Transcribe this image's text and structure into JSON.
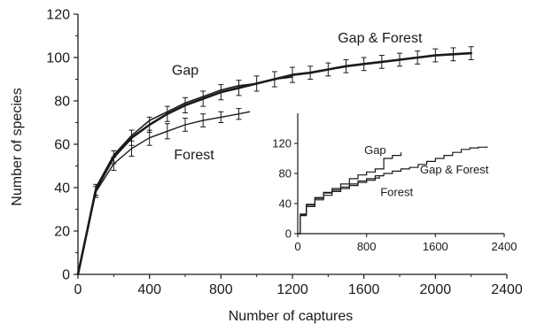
{
  "chart_data": [
    {
      "panel": "main",
      "type": "line",
      "title": "",
      "xlabel": "Number of captures",
      "ylabel": "Number of species",
      "xlim": [
        0,
        2400
      ],
      "ylim": [
        0,
        120
      ],
      "xticks": [
        "0",
        "400",
        "800",
        "1200",
        "1600",
        "2000",
        "2400"
      ],
      "yticks": [
        "0",
        "20",
        "40",
        "60",
        "80",
        "100",
        "120"
      ],
      "grid": false,
      "legend": "none (series labelled directly on curves)",
      "series": [
        {
          "name": "Gap & Forest",
          "color": "#1a1a1a",
          "x": [
            0,
            100,
            200,
            300,
            400,
            500,
            600,
            700,
            800,
            900,
            1000,
            1100,
            1200,
            1300,
            1400,
            1500,
            1600,
            1700,
            1800,
            1900,
            2000,
            2100,
            2200
          ],
          "y": [
            0,
            39,
            54,
            63,
            69,
            74,
            78,
            81,
            84,
            86,
            88,
            90,
            92,
            93,
            94.5,
            96,
            97,
            98,
            99,
            100,
            101,
            101.5,
            102
          ],
          "err": [
            2.5,
            2.5,
            3,
            3.5,
            3.5,
            3.5,
            3.5,
            3.5,
            3.5,
            3.5,
            3.5,
            3.5,
            3.5,
            3,
            3,
            3,
            3,
            3,
            3,
            3,
            3,
            3,
            3
          ]
        },
        {
          "name": "Gap",
          "color": "#1a1a1a",
          "x": [
            0,
            100,
            200,
            300,
            400,
            500,
            600,
            700,
            800,
            900,
            1000,
            1100,
            1200
          ],
          "y": [
            0,
            40,
            55,
            64,
            71,
            75,
            79,
            82,
            85,
            87,
            88,
            90,
            91
          ],
          "err": []
        },
        {
          "name": "Forest",
          "color": "#1a1a1a",
          "x": [
            0,
            100,
            200,
            300,
            400,
            500,
            600,
            700,
            800,
            900,
            960
          ],
          "y": [
            0,
            38,
            51,
            58,
            63,
            66,
            69,
            71,
            72.5,
            74,
            75
          ],
          "err": [
            2.5,
            2.5,
            3,
            3.5,
            3.5,
            3.5,
            3,
            3,
            2.5,
            2.5,
            0
          ]
        }
      ],
      "annotations": [
        "Gap & Forest",
        "Gap",
        "Forest"
      ]
    },
    {
      "panel": "inset",
      "type": "line",
      "title": "",
      "xlim": [
        0,
        2400
      ],
      "ylim": [
        0,
        160
      ],
      "xticks": [
        "0",
        "800",
        "1600",
        "2400"
      ],
      "yticks": [
        "0",
        "40",
        "80",
        "120"
      ],
      "grid": false,
      "series": [
        {
          "name": "Gap & Forest",
          "x": [
            0,
            30,
            100,
            200,
            300,
            400,
            500,
            600,
            700,
            800,
            900,
            1000,
            1100,
            1200,
            1300,
            1400,
            1500,
            1600,
            1700,
            1800,
            1900,
            2000,
            2100,
            2200
          ],
          "y": [
            0,
            25,
            38,
            47,
            54,
            58,
            62,
            66,
            70,
            73,
            77,
            80,
            83,
            86,
            88,
            92,
            96,
            100,
            104,
            108,
            112,
            114,
            115,
            116
          ]
        },
        {
          "name": "Gap",
          "x": [
            0,
            30,
            100,
            200,
            300,
            400,
            500,
            600,
            700,
            800,
            900,
            1000,
            1100,
            1200
          ],
          "y": [
            0,
            26,
            39,
            48,
            55,
            60,
            66,
            73,
            78,
            82,
            86,
            100,
            104,
            108
          ]
        },
        {
          "name": "Forest",
          "x": [
            0,
            30,
            100,
            200,
            300,
            400,
            500,
            600,
            700,
            800,
            900,
            950
          ],
          "y": [
            0,
            24,
            36,
            45,
            51,
            56,
            60,
            64,
            68,
            71,
            74,
            76
          ]
        }
      ],
      "annotations": [
        "Gap",
        "Gap & Forest",
        "Forest"
      ]
    }
  ]
}
